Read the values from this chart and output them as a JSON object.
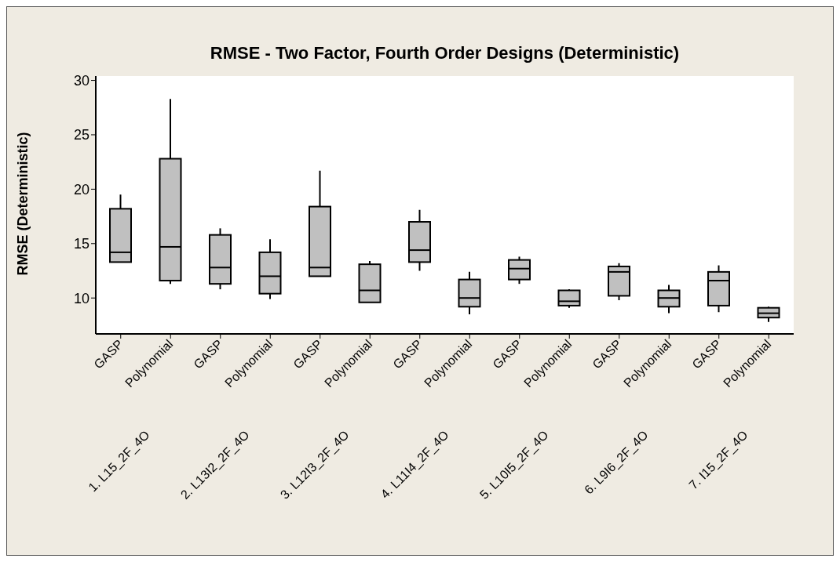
{
  "chart_data": {
    "type": "box",
    "title": "RMSE - Two Factor, Fourth Order Designs (Deterministic)",
    "ylabel": "RMSE (Deterministic)",
    "color": "#c0c0c0",
    "categories": [
      "GASP",
      "Polynomial",
      "GASP",
      "Polynomial",
      "GASP",
      "Polynomial",
      "GASP",
      "Polynomial",
      "GASP",
      "Polynomial",
      "GASP",
      "Polynomial",
      "GASP",
      "Polynomial"
    ],
    "annotations": [
      "1. L15_2F_4O",
      "2. L13I2_2F_4O",
      "3. L12I3_2F_4O",
      "4. L11I4_2F_4O",
      "5. L10I5_2F_4O",
      "6. L9I6_2F_4O",
      "7. I15_2F_4O"
    ],
    "boxes": [
      {
        "low": 13.3,
        "q1": 13.3,
        "median": 14.2,
        "q3": 18.2,
        "high": 19.5
      },
      {
        "low": 11.3,
        "q1": 11.6,
        "median": 14.7,
        "q3": 22.8,
        "high": 28.3
      },
      {
        "low": 10.8,
        "q1": 11.3,
        "median": 12.8,
        "q3": 15.8,
        "high": 16.4
      },
      {
        "low": 9.9,
        "q1": 10.4,
        "median": 12.0,
        "q3": 14.2,
        "high": 15.4
      },
      {
        "low": 12.0,
        "q1": 12.0,
        "median": 12.8,
        "q3": 18.4,
        "high": 21.7
      },
      {
        "low": 9.6,
        "q1": 9.6,
        "median": 10.7,
        "q3": 13.1,
        "high": 13.4
      },
      {
        "low": 12.5,
        "q1": 13.3,
        "median": 14.4,
        "q3": 17.0,
        "high": 18.1
      },
      {
        "low": 8.5,
        "q1": 9.2,
        "median": 10.0,
        "q3": 11.7,
        "high": 12.4
      },
      {
        "low": 11.3,
        "q1": 11.7,
        "median": 12.7,
        "q3": 13.5,
        "high": 13.8
      },
      {
        "low": 9.1,
        "q1": 9.3,
        "median": 9.7,
        "q3": 10.7,
        "high": 10.8
      },
      {
        "low": 9.8,
        "q1": 10.2,
        "median": 12.4,
        "q3": 12.9,
        "high": 13.2
      },
      {
        "low": 8.6,
        "q1": 9.2,
        "median": 10.0,
        "q3": 10.7,
        "high": 11.2
      },
      {
        "low": 8.7,
        "q1": 9.3,
        "median": 11.6,
        "q3": 12.4,
        "high": 13.0
      },
      {
        "low": 7.8,
        "q1": 8.2,
        "median": 8.6,
        "q3": 9.1,
        "high": 9.2
      }
    ],
    "ylim": [
      6.7,
      30.4
    ],
    "yticks": [
      10,
      15,
      20,
      25,
      30
    ]
  }
}
